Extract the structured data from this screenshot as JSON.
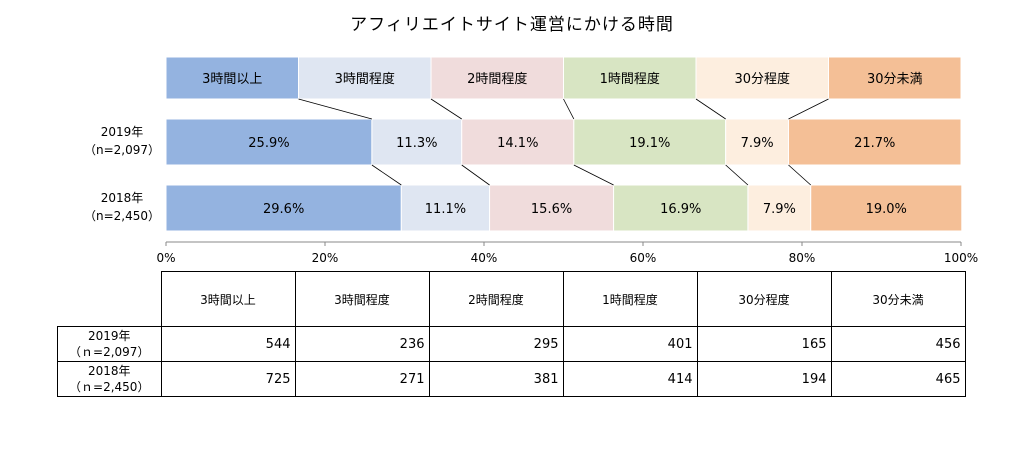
{
  "chart_data": {
    "type": "bar",
    "orientation": "horizontal",
    "stacked": "percent",
    "title": "アフィリエイトサイト運営にかける時間",
    "categories": [
      {
        "line1": "2019年",
        "line2": "（n=2,097）"
      },
      {
        "line1": "2018年",
        "line2": "（n=2,450）"
      }
    ],
    "series": [
      {
        "name": "3時間以上",
        "color": "#94b3e0",
        "values": [
          25.9,
          29.6
        ]
      },
      {
        "name": "3時間程度",
        "color": "#dfe6f2",
        "values": [
          11.3,
          11.1
        ]
      },
      {
        "name": "2時間程度",
        "color": "#f0dcdc",
        "values": [
          14.1,
          15.6
        ]
      },
      {
        "name": "1時間程度",
        "color": "#d8e5c3",
        "values": [
          19.1,
          16.9
        ]
      },
      {
        "name": "30分程度",
        "color": "#fdeedf",
        "values": [
          7.9,
          7.9
        ]
      },
      {
        "name": "30分未満",
        "color": "#f4bf96",
        "values": [
          21.7,
          19.0
        ]
      }
    ],
    "value_labels": [
      [
        "25.9%",
        "11.3%",
        "14.1%",
        "19.1%",
        "7.9%",
        "21.7%"
      ],
      [
        "29.6%",
        "11.1%",
        "15.6%",
        "16.9%",
        "7.9%",
        "19.0%"
      ]
    ],
    "xticks": [
      "0%",
      "20%",
      "40%",
      "60%",
      "80%",
      "100%"
    ],
    "xlim": [
      0,
      100
    ],
    "legend": "top"
  },
  "table": {
    "headers": [
      "3時間以上",
      "3時間程度",
      "2時間程度",
      "1時間程度",
      "30分程度",
      "30分未満"
    ],
    "rows": [
      {
        "line1": "2019年",
        "line2": "（ｎ=2,097）",
        "values": [
          "544",
          "236",
          "295",
          "401",
          "165",
          "456"
        ]
      },
      {
        "line1": "2018年",
        "line2": "（ｎ=2,450）",
        "values": [
          "725",
          "271",
          "381",
          "414",
          "194",
          "465"
        ]
      }
    ]
  }
}
